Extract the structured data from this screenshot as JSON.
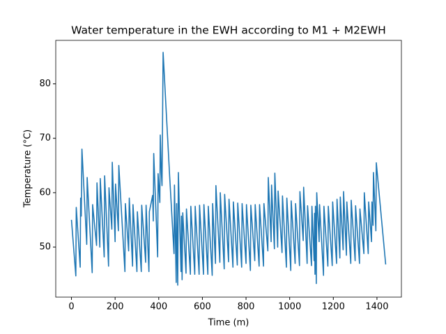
{
  "chart_data": {
    "type": "line",
    "title": "Water temperature in the EWH according to M1 + M2EWH",
    "x_label": "Time (m)",
    "y_label": "Temperature (°C)",
    "x": [
      0,
      20,
      22,
      40,
      42,
      45,
      48,
      70,
      72,
      95,
      97,
      115,
      117,
      130,
      132,
      150,
      152,
      170,
      172,
      185,
      187,
      200,
      202,
      215,
      217,
      245,
      247,
      262,
      265,
      280,
      282,
      300,
      302,
      320,
      322,
      340,
      342,
      355,
      357,
      372,
      375,
      377,
      395,
      397,
      405,
      407,
      412,
      415,
      420,
      450,
      470,
      472,
      480,
      482,
      487,
      490,
      502,
      504,
      507,
      510,
      525,
      527,
      545,
      547,
      565,
      567,
      585,
      587,
      605,
      607,
      625,
      627,
      645,
      647,
      660,
      662,
      680,
      682,
      700,
      702,
      720,
      722,
      740,
      742,
      760,
      762,
      780,
      782,
      800,
      802,
      820,
      822,
      840,
      842,
      860,
      862,
      880,
      882,
      900,
      902,
      915,
      917,
      930,
      932,
      945,
      947,
      965,
      967,
      985,
      987,
      1005,
      1007,
      1025,
      1027,
      1045,
      1047,
      1062,
      1064,
      1080,
      1082,
      1100,
      1102,
      1112,
      1114,
      1116,
      1118,
      1122,
      1124,
      1135,
      1137,
      1155,
      1157,
      1175,
      1177,
      1195,
      1197,
      1215,
      1217,
      1230,
      1232,
      1245,
      1247,
      1260,
      1262,
      1280,
      1282,
      1300,
      1302,
      1320,
      1322,
      1340,
      1342,
      1360,
      1362,
      1375,
      1377,
      1382,
      1384,
      1395,
      1397,
      1440
    ],
    "series": [
      {
        "name": "Temperature",
        "color": "#1f77b4",
        "values": [
          55,
          44.7,
          57.3,
          46.3,
          59,
          55.7,
          68,
          50.5,
          62.8,
          45.3,
          57.8,
          50.3,
          61.8,
          50,
          62.6,
          48.2,
          63.1,
          46.5,
          60.9,
          53.3,
          65.6,
          51,
          61.6,
          53,
          65,
          45.5,
          58,
          49.3,
          59,
          46.5,
          57.8,
          45.5,
          56.5,
          45.5,
          57.7,
          47.2,
          57.7,
          45.5,
          56.5,
          59.5,
          54.8,
          67.2,
          48.2,
          63.5,
          58.2,
          70.6,
          63.6,
          61.3,
          85.8,
          63,
          48.8,
          61.4,
          43.5,
          58,
          43,
          63.7,
          45.5,
          55.7,
          44,
          56.3,
          45.2,
          57,
          45,
          57.5,
          45,
          57.5,
          45,
          57.7,
          45,
          57.8,
          45,
          57.5,
          44.8,
          58,
          47,
          61.3,
          47.2,
          60,
          46,
          59.7,
          47.3,
          58.8,
          46.3,
          58.3,
          46.7,
          58.1,
          46.3,
          58,
          47,
          57.8,
          45.7,
          57.7,
          47.5,
          57.8,
          46.5,
          57.8,
          46.5,
          58,
          49.3,
          62.8,
          51,
          61.4,
          49.7,
          63.6,
          50,
          60.3,
          49,
          59.4,
          46.3,
          59,
          45.7,
          58.5,
          47,
          58,
          46.6,
          60.2,
          51.2,
          61,
          47,
          57.6,
          46.6,
          57.5,
          47.5,
          56.2,
          45,
          57.5,
          43.3,
          60,
          51,
          57.8,
          44.8,
          57.5,
          46.5,
          57.5,
          46.6,
          58.3,
          47,
          58.8,
          48,
          59.2,
          49.5,
          60.2,
          48.5,
          58.3,
          47,
          58.6,
          47.5,
          57.6,
          47,
          57,
          48.8,
          60,
          48.8,
          58.3,
          51,
          58.3,
          54,
          63.7,
          53,
          65.5,
          46.8
        ]
      }
    ],
    "xlim": [
      -72,
      1512
    ],
    "ylim": [
      40.8,
      88
    ],
    "xticks": [
      0,
      200,
      400,
      600,
      800,
      1000,
      1200,
      1400
    ],
    "yticks": [
      50,
      60,
      70,
      80
    ]
  }
}
